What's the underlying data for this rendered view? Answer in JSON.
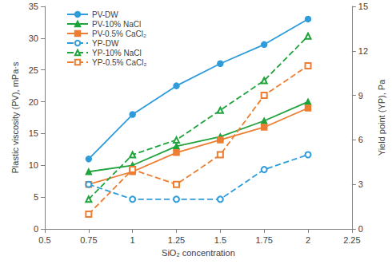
{
  "chart_data": {
    "type": "line",
    "x_label": "SiO₂ concentration",
    "y_label": "Plastic viscosity (PV), mPa·s",
    "y2_label": "Yield point (YP), Pa",
    "x": [
      0.75,
      1,
      1.25,
      1.5,
      1.75,
      2
    ],
    "xlim": [
      0.5,
      2.25
    ],
    "xticks": [
      0.5,
      0.75,
      1,
      1.25,
      1.5,
      1.75,
      2,
      2.25
    ],
    "ylim": [
      0,
      35
    ],
    "yticks": [
      0,
      5,
      10,
      15,
      20,
      25,
      30,
      35
    ],
    "y2lim": [
      0,
      15
    ],
    "y2ticks": [
      0,
      3,
      6,
      9,
      12,
      15
    ],
    "grid": false,
    "legend": "upper left",
    "series": [
      {
        "name": "PV-DW",
        "color": "#2E9CDB",
        "marker": "circle",
        "line_style": "solid",
        "values": [
          11,
          18,
          22.5,
          26,
          29,
          33
        ]
      },
      {
        "name": "PV-10% NaCl",
        "color": "#1FA33B",
        "marker": "triangle",
        "line_style": "solid",
        "values": [
          9,
          10,
          13,
          14.5,
          17,
          20
        ]
      },
      {
        "name": "PV-0.5% CaCl₂",
        "color": "#ED7D31",
        "marker": "rect",
        "line_style": "solid",
        "values": [
          7,
          9,
          12,
          14,
          16,
          19
        ]
      },
      {
        "name": "YP-DW",
        "color": "#2E9CDB",
        "marker": "emptyCircle",
        "line_style": "dashed",
        "axis": "y2",
        "values": [
          3,
          2,
          2,
          2,
          4,
          5
        ]
      },
      {
        "name": "YP-10% NaCl",
        "color": "#1FA33B",
        "marker": "emptyTriangle",
        "line_style": "dashed",
        "axis": "y2",
        "values": [
          2,
          5,
          6,
          8,
          10,
          13
        ]
      },
      {
        "name": "YP-0.5% CaCl₂",
        "color": "#ED7D31",
        "marker": "emptyRect",
        "line_style": "dashed",
        "axis": "y2",
        "values": [
          1,
          4,
          3,
          5,
          9,
          11
        ]
      }
    ]
  }
}
